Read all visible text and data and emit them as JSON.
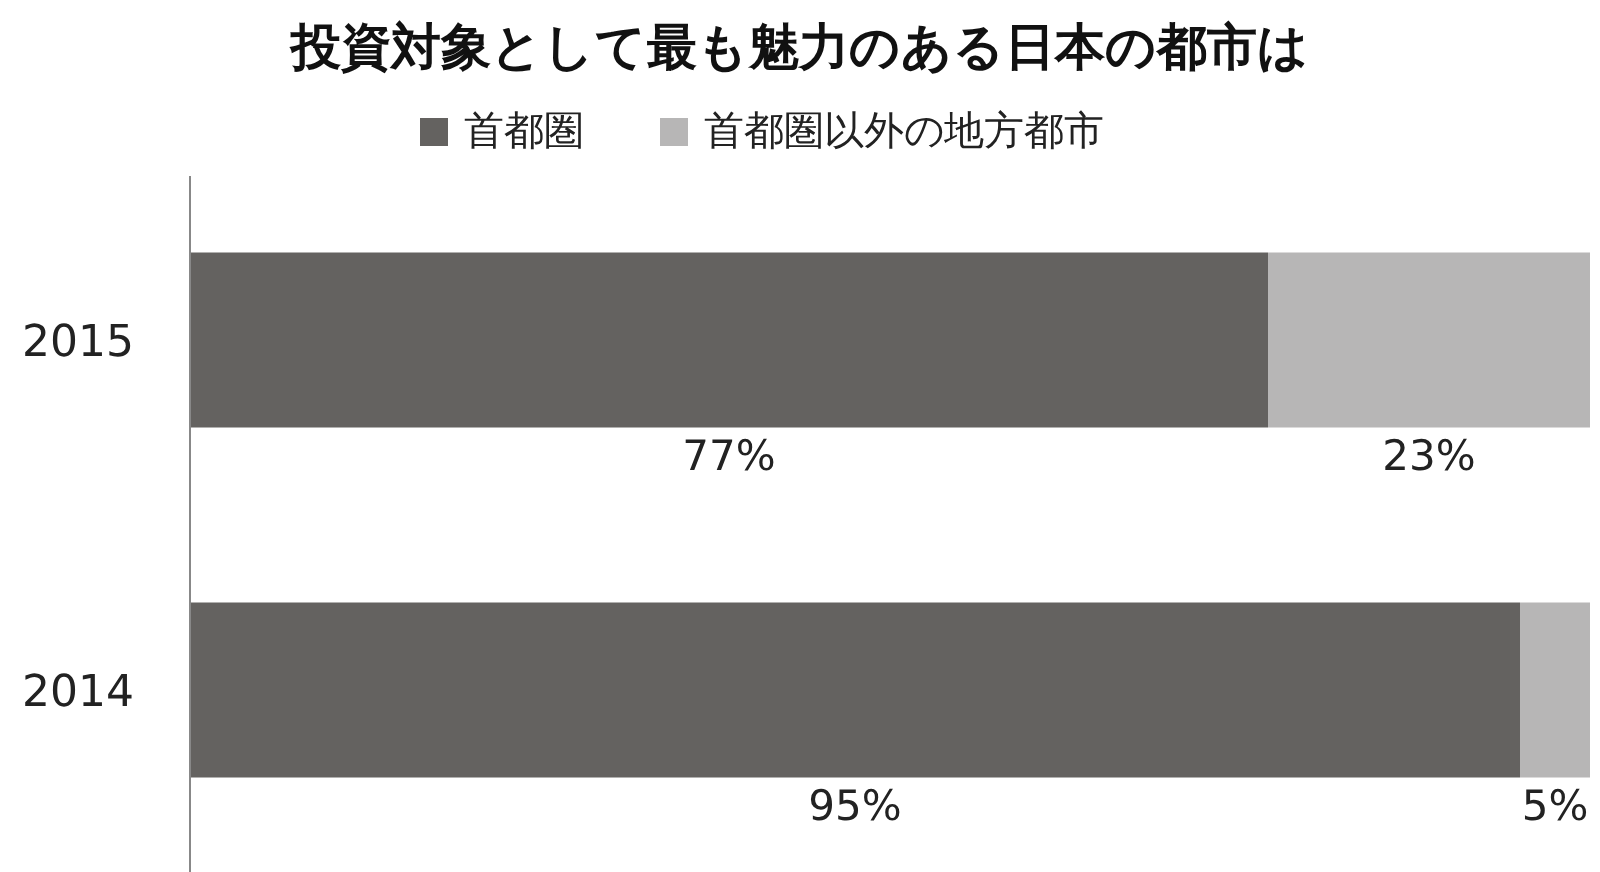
{
  "chart_data": {
    "type": "bar",
    "title": "投資対象として最も魅力のある日本の都市は",
    "orientation": "horizontal",
    "stacked": true,
    "legend": "top",
    "categories": [
      "2015",
      "2014"
    ],
    "series": [
      {
        "name": "首都圏",
        "color": "#646260",
        "values": [
          77,
          95
        ],
        "value_labels": [
          "77%",
          "95%"
        ]
      },
      {
        "name": "首都圏以外の地方都市",
        "color": "#b7b6b6",
        "values": [
          23,
          5
        ],
        "value_labels": [
          "23%",
          "5%"
        ]
      }
    ]
  }
}
